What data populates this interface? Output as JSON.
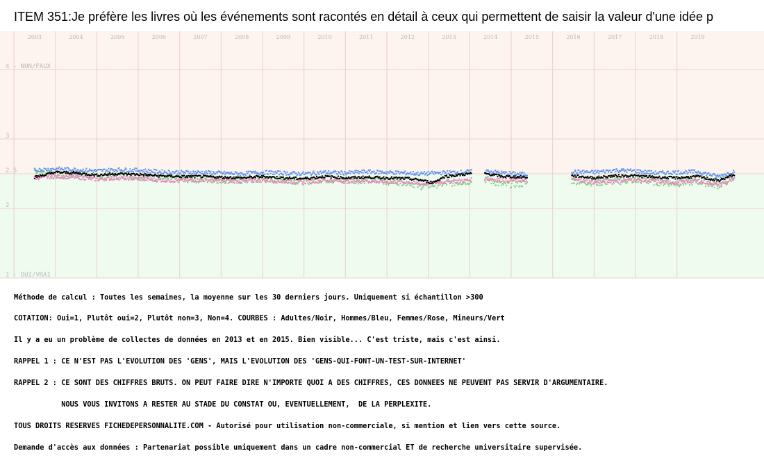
{
  "colors": {
    "top_zone": "#fdf3ef",
    "bottom_zone": "#effbef",
    "grid": "#eccfcf",
    "axis_text": "#b9b9b9",
    "adultes": "#000000",
    "hommes": "#5c93ee",
    "femmes": "#ee82c4",
    "mineurs": "#7fd37f"
  },
  "chart_data": {
    "type": "scatter",
    "title": "ITEM 351:Je préfère les livres où les événements sont racontés en détail à ceux qui permettent de saisir la valeur d'une idée p",
    "x_ticks": [
      "2003",
      "2004",
      "2005",
      "2006",
      "2007",
      "2008",
      "2009",
      "2010",
      "2011",
      "2012",
      "2013",
      "2014",
      "2015",
      "2016",
      "2017",
      "2018",
      "2019"
    ],
    "xlim": [
      2002.5,
      2020.6
    ],
    "ylim": [
      1,
      4
    ],
    "y_ticks": [
      {
        "value": 4,
        "label": "4 - NON/FAUX"
      },
      {
        "value": 3,
        "label": "3"
      },
      {
        "value": 2.5,
        "label": "2.5"
      },
      {
        "value": 2,
        "label": "2"
      },
      {
        "value": 1,
        "label": "1 - OUI/VRAI"
      }
    ],
    "gaps": [
      [
        2013.55,
        2013.85
      ],
      [
        2014.9,
        2015.95
      ]
    ],
    "series": [
      {
        "name": "Adultes",
        "color": "#000000",
        "points": [
          [
            2003.0,
            2.45
          ],
          [
            2003.5,
            2.52
          ],
          [
            2004.0,
            2.51
          ],
          [
            2004.5,
            2.48
          ],
          [
            2005.0,
            2.5
          ],
          [
            2005.5,
            2.49
          ],
          [
            2006.0,
            2.47
          ],
          [
            2006.5,
            2.46
          ],
          [
            2007.0,
            2.46
          ],
          [
            2007.5,
            2.45
          ],
          [
            2008.0,
            2.44
          ],
          [
            2008.5,
            2.46
          ],
          [
            2009.0,
            2.44
          ],
          [
            2009.5,
            2.43
          ],
          [
            2010.0,
            2.46
          ],
          [
            2010.5,
            2.44
          ],
          [
            2011.0,
            2.45
          ],
          [
            2011.5,
            2.44
          ],
          [
            2012.0,
            2.43
          ],
          [
            2012.3,
            2.41
          ],
          [
            2012.6,
            2.37
          ],
          [
            2012.9,
            2.46
          ],
          [
            2013.2,
            2.48
          ],
          [
            2013.5,
            2.5
          ],
          [
            2013.9,
            2.5
          ],
          [
            2014.3,
            2.46
          ],
          [
            2014.9,
            2.45
          ],
          [
            2016.0,
            2.47
          ],
          [
            2016.5,
            2.44
          ],
          [
            2017.0,
            2.47
          ],
          [
            2017.5,
            2.47
          ],
          [
            2018.0,
            2.45
          ],
          [
            2018.5,
            2.44
          ],
          [
            2019.0,
            2.46
          ],
          [
            2019.5,
            2.4
          ],
          [
            2019.9,
            2.49
          ]
        ]
      },
      {
        "name": "Hommes",
        "color": "#5c93ee",
        "points": [
          [
            2003.0,
            2.55
          ],
          [
            2003.5,
            2.57
          ],
          [
            2004.0,
            2.56
          ],
          [
            2004.5,
            2.54
          ],
          [
            2005.0,
            2.56
          ],
          [
            2005.5,
            2.55
          ],
          [
            2006.0,
            2.53
          ],
          [
            2006.5,
            2.52
          ],
          [
            2007.0,
            2.52
          ],
          [
            2007.5,
            2.51
          ],
          [
            2008.0,
            2.5
          ],
          [
            2008.5,
            2.52
          ],
          [
            2009.0,
            2.51
          ],
          [
            2009.5,
            2.5
          ],
          [
            2010.0,
            2.52
          ],
          [
            2010.5,
            2.51
          ],
          [
            2011.0,
            2.53
          ],
          [
            2011.5,
            2.52
          ],
          [
            2012.0,
            2.51
          ],
          [
            2012.3,
            2.5
          ],
          [
            2013.9,
            2.54
          ],
          [
            2014.3,
            2.51
          ],
          [
            2014.9,
            2.49
          ],
          [
            2016.0,
            2.53
          ],
          [
            2016.5,
            2.52
          ],
          [
            2017.0,
            2.55
          ],
          [
            2017.5,
            2.54
          ],
          [
            2018.0,
            2.51
          ],
          [
            2018.5,
            2.52
          ],
          [
            2019.0,
            2.53
          ],
          [
            2019.5,
            2.46
          ],
          [
            2019.9,
            2.54
          ]
        ]
      },
      {
        "name": "Femmes",
        "color": "#ee82c4",
        "points": [
          [
            2003.0,
            2.44
          ],
          [
            2003.5,
            2.46
          ],
          [
            2004.0,
            2.45
          ],
          [
            2004.5,
            2.42
          ],
          [
            2005.0,
            2.44
          ],
          [
            2005.5,
            2.43
          ],
          [
            2006.0,
            2.41
          ],
          [
            2006.5,
            2.4
          ],
          [
            2007.0,
            2.41
          ],
          [
            2007.5,
            2.4
          ],
          [
            2008.0,
            2.39
          ],
          [
            2008.5,
            2.41
          ],
          [
            2009.0,
            2.39
          ],
          [
            2009.5,
            2.38
          ],
          [
            2010.0,
            2.41
          ],
          [
            2010.5,
            2.39
          ],
          [
            2011.0,
            2.4
          ],
          [
            2011.5,
            2.38
          ],
          [
            2012.0,
            2.38
          ],
          [
            2012.3,
            2.35
          ],
          [
            2013.9,
            2.43
          ],
          [
            2014.3,
            2.41
          ],
          [
            2014.9,
            2.4
          ],
          [
            2016.0,
            2.41
          ],
          [
            2016.5,
            2.38
          ],
          [
            2017.0,
            2.4
          ],
          [
            2017.5,
            2.41
          ],
          [
            2018.0,
            2.39
          ],
          [
            2018.5,
            2.37
          ],
          [
            2019.0,
            2.4
          ],
          [
            2019.5,
            2.34
          ],
          [
            2019.9,
            2.42
          ]
        ]
      },
      {
        "name": "Mineurs",
        "color": "#7fd37f",
        "points": [
          [
            2003.0,
            2.55
          ],
          [
            2003.5,
            2.47
          ],
          [
            2004.0,
            2.48
          ],
          [
            2004.5,
            2.45
          ],
          [
            2005.0,
            2.47
          ],
          [
            2005.5,
            2.46
          ],
          [
            2006.0,
            2.43
          ],
          [
            2006.5,
            2.42
          ],
          [
            2007.0,
            2.42
          ],
          [
            2007.5,
            2.41
          ],
          [
            2008.0,
            2.4
          ],
          [
            2008.5,
            2.42
          ],
          [
            2009.0,
            2.41
          ],
          [
            2009.5,
            2.39
          ],
          [
            2010.0,
            2.42
          ],
          [
            2010.5,
            2.4
          ],
          [
            2011.0,
            2.41
          ],
          [
            2011.5,
            2.39
          ],
          [
            2012.0,
            2.38
          ],
          [
            2012.3,
            2.32
          ],
          [
            2013.9,
            2.42
          ],
          [
            2014.3,
            2.34
          ],
          [
            2014.9,
            2.36
          ],
          [
            2016.0,
            2.4
          ],
          [
            2016.5,
            2.37
          ],
          [
            2017.0,
            2.39
          ],
          [
            2017.5,
            2.41
          ],
          [
            2018.0,
            2.38
          ],
          [
            2018.5,
            2.36
          ],
          [
            2019.0,
            2.39
          ],
          [
            2019.5,
            2.33
          ],
          [
            2019.9,
            2.45
          ]
        ]
      }
    ]
  },
  "notes": [
    "Méthode de calcul : Toutes les semaines, la moyenne sur les 30 derniers jours. Uniquement si échantillon >300",
    "COTATION: Oui=1, Plutôt oui=2, Plutôt non=3, Non=4. COURBES : Adultes/Noir, Hommes/Bleu, Femmes/Rose, Mineurs/Vert",
    "Il y a eu un problème de collectes de données en 2013 et en 2015. Bien visible... C'est triste, mais c'est ainsi.",
    "RAPPEL 1 : CE N'EST PAS L'EVOLUTION DES 'GENS', MAIS L'EVOLUTION DES 'GENS-QUI-FONT-UN-TEST-SUR-INTERNET'",
    "RAPPEL 2 : CE SONT DES CHIFFRES BRUTS. ON PEUT FAIRE DIRE N'IMPORTE QUOI A DES CHIFFRES, CES DONNEES NE PEUVENT PAS SERVIR D'ARGUMENTAIRE.",
    "           NOUS VOUS INVITONS A RESTER AU STADE DU CONSTAT OU, EVENTUELLEMENT,  DE LA PERPLEXITE.",
    "TOUS DROITS RESERVES FICHEDEPERSONNALITE.COM - Autorisé pour utilisation non-commerciale, si mention et lien vers cette source.",
    "Demande d'accès aux données : Partenariat possible uniquement dans un cadre non-commercial ET de recherche universitaire supervisée."
  ]
}
